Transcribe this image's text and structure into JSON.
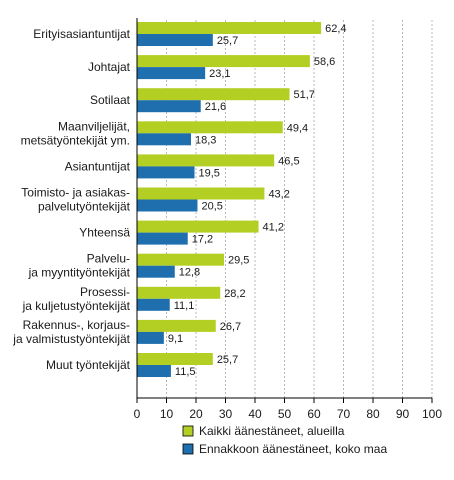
{
  "chart_data": {
    "type": "bar",
    "orientation": "horizontal",
    "categories": [
      [
        "Erityisasiantuntijat"
      ],
      [
        "Johtajat"
      ],
      [
        "Sotilaat"
      ],
      [
        "Maanviljelijät,",
        "metsätyöntekijät ym."
      ],
      [
        "Asiantuntijat"
      ],
      [
        "Toimisto- ja asiakas-",
        "palvelutyöntekijät"
      ],
      [
        "Yhteensä"
      ],
      [
        "Palvelu-",
        "ja myyntityöntekijät"
      ],
      [
        "Prosessi-",
        "ja kuljetustyöntekijät"
      ],
      [
        "Rakennus-, korjaus-",
        "ja valmistustyöntekijät"
      ],
      [
        "Muut työntekijät"
      ]
    ],
    "series": [
      {
        "name": "Kaikki äänestäneet, alueilla",
        "color": "#b3cf24",
        "values": [
          62.4,
          58.6,
          51.7,
          49.4,
          46.5,
          43.2,
          41.2,
          29.5,
          28.2,
          26.7,
          25.7
        ],
        "labels": [
          "62,4",
          "58,6",
          "51,7",
          "49,4",
          "46,5",
          "43,2",
          "41,2",
          "29,5",
          "28,2",
          "26,7",
          "25,7"
        ]
      },
      {
        "name": "Ennakkoon äänestäneet, koko maa",
        "color": "#1f6fae",
        "values": [
          25.7,
          23.1,
          21.6,
          18.3,
          19.5,
          20.5,
          17.2,
          12.8,
          11.1,
          9.1,
          11.5
        ],
        "labels": [
          "25,7",
          "23,1",
          "21,6",
          "18,3",
          "19,5",
          "20,5",
          "17,2",
          "12,8",
          "11,1",
          "9,1",
          "11,5"
        ]
      }
    ],
    "xlim": [
      0,
      100
    ],
    "xticks": [
      0,
      10,
      20,
      30,
      40,
      50,
      60,
      70,
      80,
      90,
      100
    ],
    "grid": true,
    "legend_position": "bottom"
  }
}
